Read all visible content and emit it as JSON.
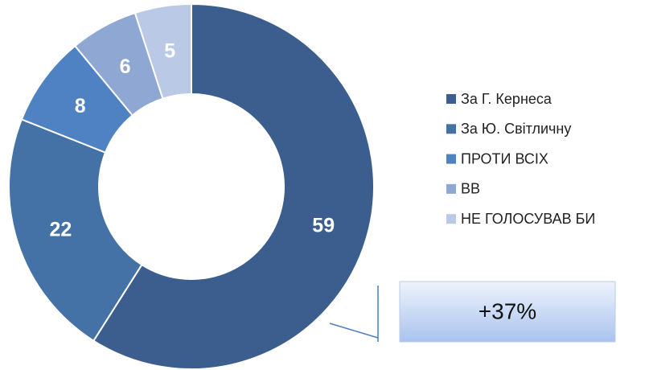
{
  "chart_data": {
    "type": "donut",
    "categories": [
      "За Г. Кернеса",
      "За Ю. Світличну",
      "ПРОТИ ВСІХ",
      "ВВ",
      "НЕ ГОЛОСУВАВ БИ"
    ],
    "values": [
      59,
      22,
      8,
      6,
      5
    ],
    "colors": [
      "#3c5e8e",
      "#4471a6",
      "#4f82c2",
      "#8ea7d3",
      "#b9c9e6"
    ],
    "legend": "right",
    "annotations": [
      "+37%"
    ]
  }
}
